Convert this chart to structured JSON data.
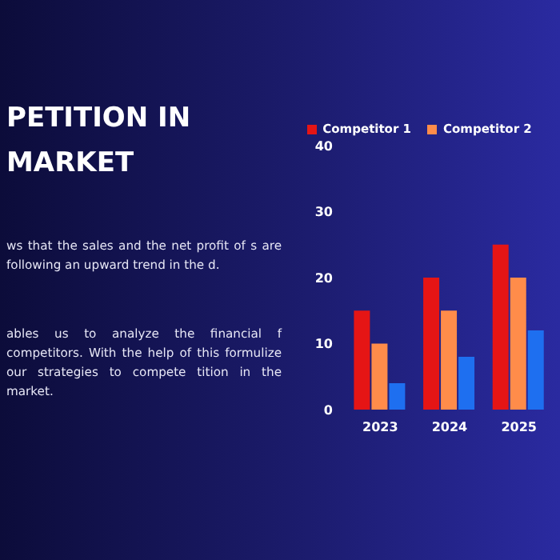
{
  "chart_data": {
    "type": "bar",
    "title": "PETITION IN MARKET",
    "annotations": [
      "ws that the sales and the net profit of s are following an upward trend in the d.",
      "ables us to analyze the financial f competitors. With the help of this formulize our strategies to compete tition in the market."
    ],
    "categories": [
      "2023",
      "2024",
      "2025"
    ],
    "series": [
      {
        "name": "Competitor 1",
        "color": "#e51515",
        "values": [
          15,
          20,
          25
        ]
      },
      {
        "name": "Competitor 2",
        "color": "#ff8c4a",
        "values": [
          10,
          15,
          20
        ]
      },
      {
        "color": "#1e6ff0",
        "values": [
          4,
          8,
          12
        ]
      }
    ],
    "ylim": [
      0,
      40
    ],
    "yticks": [
      0,
      10,
      20,
      30,
      40
    ],
    "grid": false,
    "legend": "top"
  }
}
